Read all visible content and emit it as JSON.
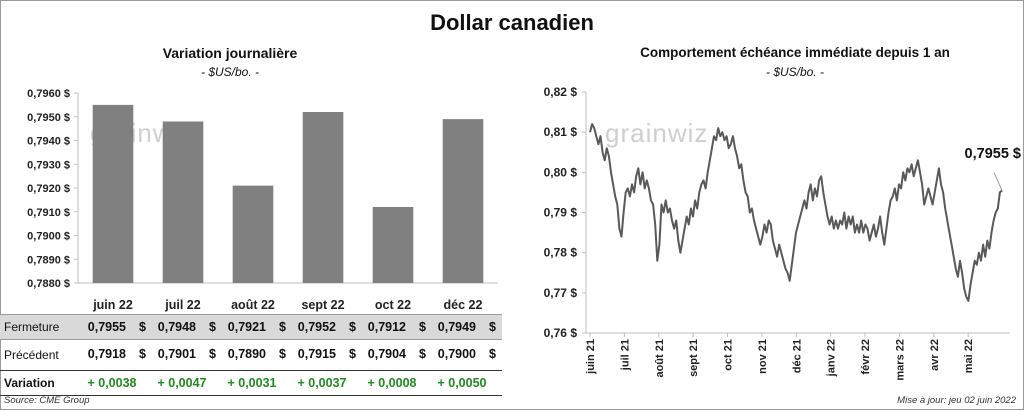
{
  "title": "Dollar canadien",
  "left_panel": {
    "title": "Variation  journalière",
    "unit": "- $US/bo. -",
    "watermark": "grainwiz"
  },
  "right_panel": {
    "title": "Comportement échéance immédiate depuis 1 an",
    "unit": "- $US/bo. -",
    "watermark": "grainwiz",
    "last_value_label": "0,7955 $"
  },
  "table": {
    "rows": [
      {
        "label": "Fermeture",
        "values": [
          "0,7955",
          "0,7948",
          "0,7921",
          "0,7952",
          "0,7912",
          "0,7949"
        ],
        "currency": "$"
      },
      {
        "label": "Précédent",
        "values": [
          "0,7918",
          "0,7901",
          "0,7890",
          "0,7915",
          "0,7904",
          "0,7900"
        ],
        "currency": "$"
      }
    ],
    "variation_label": "Variation",
    "variations": [
      "+ 0,0038",
      "+ 0,0047",
      "+ 0,0031",
      "+ 0,0037",
      "+ 0,0008",
      "+ 0,0050"
    ]
  },
  "footer": {
    "source": "Source: CME Group",
    "updated": "Mise à jour: jeu 02 juin 2022"
  },
  "colors": {
    "bar": "#808080",
    "line": "#595959",
    "variation_positive": "#1e8c1e",
    "grid": "#d9d9d9"
  },
  "chart_data": [
    {
      "type": "bar",
      "title": "Variation  journalière",
      "categories": [
        "juin 22",
        "juil 22",
        "août 22",
        "sept 22",
        "oct 22",
        "déc 22"
      ],
      "values": [
        0.7955,
        0.7948,
        0.7921,
        0.7952,
        0.7912,
        0.7949
      ],
      "ylim": [
        0.788,
        0.796
      ],
      "yticks": [
        "0,7880 $",
        "0,7890 $",
        "0,7900 $",
        "0,7910 $",
        "0,7920 $",
        "0,7930 $",
        "0,7940 $",
        "0,7950 $",
        "0,7960 $"
      ],
      "grid": false
    },
    {
      "type": "line",
      "title": "Comportement échéance immédiate depuis 1 an",
      "ylim": [
        0.76,
        0.82
      ],
      "yticks": [
        "0,76 $",
        "0,77 $",
        "0,78 $",
        "0,79 $",
        "0,80 $",
        "0,81 $",
        "0,82 $"
      ],
      "xticks": [
        "juin 21",
        "juil 21",
        "août 21",
        "sept 21",
        "oct 21",
        "nov 21",
        "déc 21",
        "janv 22",
        "févr 22",
        "mars 22",
        "avr 22",
        "mai 22"
      ],
      "grid": false,
      "series": [
        {
          "values": [
            0.81,
            0.812,
            0.811,
            0.809,
            0.807,
            0.809,
            0.805,
            0.803,
            0.806,
            0.804,
            0.8,
            0.797,
            0.794,
            0.792,
            0.786,
            0.784,
            0.79,
            0.795,
            0.796,
            0.794,
            0.797,
            0.795,
            0.799,
            0.801,
            0.797,
            0.8,
            0.796,
            0.798,
            0.796,
            0.793,
            0.792,
            0.787,
            0.778,
            0.782,
            0.792,
            0.79,
            0.793,
            0.79,
            0.791,
            0.788,
            0.786,
            0.788,
            0.783,
            0.78,
            0.783,
            0.786,
            0.789,
            0.787,
            0.791,
            0.789,
            0.793,
            0.791,
            0.795,
            0.797,
            0.798,
            0.796,
            0.8,
            0.803,
            0.806,
            0.809,
            0.808,
            0.811,
            0.809,
            0.81,
            0.808,
            0.809,
            0.806,
            0.807,
            0.809,
            0.806,
            0.804,
            0.801,
            0.802,
            0.798,
            0.795,
            0.794,
            0.79,
            0.791,
            0.788,
            0.786,
            0.784,
            0.782,
            0.784,
            0.787,
            0.785,
            0.788,
            0.787,
            0.783,
            0.781,
            0.779,
            0.782,
            0.78,
            0.778,
            0.776,
            0.775,
            0.773,
            0.777,
            0.781,
            0.785,
            0.787,
            0.789,
            0.791,
            0.793,
            0.791,
            0.795,
            0.797,
            0.793,
            0.796,
            0.794,
            0.798,
            0.799,
            0.795,
            0.792,
            0.789,
            0.787,
            0.789,
            0.786,
            0.788,
            0.786,
            0.788,
            0.787,
            0.79,
            0.786,
            0.789,
            0.787,
            0.789,
            0.785,
            0.787,
            0.785,
            0.788,
            0.785,
            0.787,
            0.786,
            0.783,
            0.785,
            0.787,
            0.784,
            0.786,
            0.789,
            0.785,
            0.782,
            0.786,
            0.79,
            0.793,
            0.794,
            0.796,
            0.793,
            0.797,
            0.796,
            0.8,
            0.798,
            0.801,
            0.8,
            0.802,
            0.799,
            0.801,
            0.803,
            0.8,
            0.797,
            0.792,
            0.794,
            0.796,
            0.794,
            0.792,
            0.795,
            0.798,
            0.801,
            0.797,
            0.795,
            0.791,
            0.788,
            0.785,
            0.782,
            0.779,
            0.776,
            0.774,
            0.778,
            0.775,
            0.771,
            0.769,
            0.768,
            0.772,
            0.775,
            0.778,
            0.777,
            0.78,
            0.778,
            0.782,
            0.779,
            0.783,
            0.781,
            0.785,
            0.788,
            0.79,
            0.791,
            0.795,
            0.7955
          ]
        }
      ]
    }
  ]
}
